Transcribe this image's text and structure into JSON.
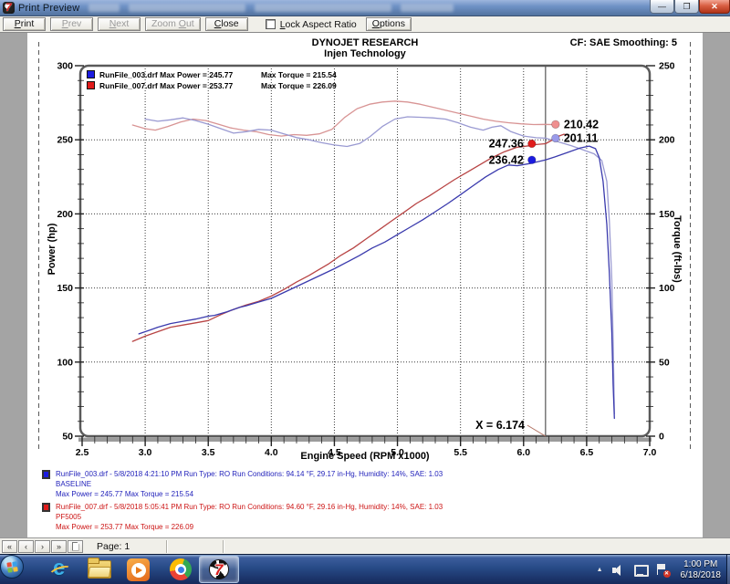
{
  "window": {
    "title": "Print Preview"
  },
  "toolbar": {
    "buttons": [
      {
        "label": "Print"
      },
      {
        "label": "Prev"
      },
      {
        "label": "Next"
      },
      {
        "label": "Zoom Out"
      },
      {
        "label": "Close"
      }
    ],
    "lock_label": "Lock Aspect Ratio",
    "lock_checked": false,
    "options_label": "Options"
  },
  "page": {
    "header": {
      "brand": "DYNOJET RESEARCH",
      "subtitle": "Injen Technology",
      "correction": "CF: SAE  Smoothing: 5"
    },
    "runs": [
      {
        "color": "#2323bb",
        "swatch": "#1b1be0",
        "info": "RunFile_003.drf - 5/8/2018 4:21:10 PM  Run Type: RO  Run Conditions: 94.14 °F, 29.17 in-Hg,  Humidity:  14%, SAE: 1.03",
        "name": "BASELINE",
        "stats": "Max Power = 245.77  Max Torque = 215.54"
      },
      {
        "color": "#cc1414",
        "swatch": "#e01b1b",
        "info": "RunFile_007.drf - 5/8/2018 5:05:41 PM  Run Type: RO  Run Conditions: 94.60 °F, 29.16 in-Hg,  Humidity:  14%, SAE: 1.03",
        "name": "PF5005",
        "stats": "Max Power = 253.77  Max Torque = 226.09"
      }
    ]
  },
  "chart_data": {
    "type": "line",
    "title": "DYNOJET RESEARCH - Injen Technology",
    "xlabel": "Engine Speed (RPM x1000)",
    "ylabel_left": "Power (hp)",
    "ylabel_right": "Torque (ft-lbs)",
    "xlim": [
      2.5,
      7.0
    ],
    "x_tick_step": 0.5,
    "x_minor_step": 0.1,
    "ylim_left": [
      50,
      300
    ],
    "ylim_right": [
      0,
      250
    ],
    "y_tick_step": 50,
    "y_minor_step": 10,
    "grid": "dotted",
    "legend": [
      {
        "file": "RunFile_003.drf",
        "power": "Max Power = 245.77",
        "torque": "Max Torque = 215.54",
        "color": "#1b1be0"
      },
      {
        "file": "RunFile_007.drf",
        "power": "Max Power = 253.77",
        "torque": "Max Torque = 226.09",
        "color": "#e01b1b"
      }
    ],
    "cursor": {
      "x": 6.174,
      "label": "X = 6.174"
    },
    "annotations": [
      {
        "label": "210.42",
        "value": 210.42,
        "axis": "right",
        "side": "after",
        "color": "#ef9090"
      },
      {
        "label": "201.11",
        "value": 201.11,
        "axis": "right",
        "side": "after",
        "color": "#9a9aea"
      },
      {
        "label": "247.36",
        "value": 247.36,
        "axis": "left",
        "side": "before",
        "color": "#e01b1b"
      },
      {
        "label": "236.42",
        "value": 236.42,
        "axis": "left",
        "side": "before",
        "color": "#1b1be0"
      }
    ],
    "series": [
      {
        "name": "RunFile_007 Torque",
        "axis": "right",
        "color": "#d89494",
        "points": [
          [
            2.9,
            210
          ],
          [
            3.0,
            207.5
          ],
          [
            3.08,
            206.5
          ],
          [
            3.18,
            209
          ],
          [
            3.28,
            212
          ],
          [
            3.38,
            214
          ],
          [
            3.48,
            213
          ],
          [
            3.58,
            210.5
          ],
          [
            3.68,
            208
          ],
          [
            3.78,
            206.5
          ],
          [
            3.88,
            205.5
          ],
          [
            3.98,
            203.5
          ],
          [
            4.08,
            202.5
          ],
          [
            4.18,
            203.5
          ],
          [
            4.28,
            203
          ],
          [
            4.38,
            204
          ],
          [
            4.48,
            207
          ],
          [
            4.58,
            215
          ],
          [
            4.68,
            221
          ],
          [
            4.78,
            224
          ],
          [
            4.88,
            225.5
          ],
          [
            4.98,
            226.09
          ],
          [
            5.08,
            225.5
          ],
          [
            5.18,
            224
          ],
          [
            5.28,
            222
          ],
          [
            5.38,
            220
          ],
          [
            5.48,
            218
          ],
          [
            5.58,
            216
          ],
          [
            5.68,
            214
          ],
          [
            5.78,
            212.5
          ],
          [
            5.88,
            211.5
          ],
          [
            5.98,
            210.8
          ],
          [
            6.08,
            210.3
          ],
          [
            6.174,
            210.42
          ],
          [
            6.25,
            210.2
          ]
        ]
      },
      {
        "name": "RunFile_003 Torque",
        "axis": "right",
        "color": "#9a9ad2",
        "points": [
          [
            3.0,
            214
          ],
          [
            3.1,
            212.5
          ],
          [
            3.2,
            213.5
          ],
          [
            3.3,
            214.8
          ],
          [
            3.4,
            213
          ],
          [
            3.5,
            210.5
          ],
          [
            3.6,
            207.5
          ],
          [
            3.7,
            204.5
          ],
          [
            3.8,
            205.5
          ],
          [
            3.9,
            207
          ],
          [
            4.0,
            206.5
          ],
          [
            4.1,
            204
          ],
          [
            4.2,
            201.5
          ],
          [
            4.3,
            200
          ],
          [
            4.4,
            198
          ],
          [
            4.5,
            196.5
          ],
          [
            4.6,
            195.5
          ],
          [
            4.7,
            197.5
          ],
          [
            4.78,
            202
          ],
          [
            4.88,
            209
          ],
          [
            4.98,
            214
          ],
          [
            5.08,
            215.54
          ],
          [
            5.18,
            215.2
          ],
          [
            5.28,
            214.8
          ],
          [
            5.38,
            214
          ],
          [
            5.48,
            211.5
          ],
          [
            5.58,
            208.5
          ],
          [
            5.68,
            206.5
          ],
          [
            5.75,
            208.5
          ],
          [
            5.82,
            209.5
          ],
          [
            5.9,
            205.5
          ],
          [
            6.0,
            202.5
          ],
          [
            6.1,
            201.4
          ],
          [
            6.174,
            201.11
          ],
          [
            6.28,
            198.5
          ],
          [
            6.38,
            196
          ],
          [
            6.48,
            193
          ],
          [
            6.56,
            190.5
          ],
          [
            6.62,
            186
          ],
          [
            6.66,
            172
          ],
          [
            6.68,
            145
          ],
          [
            6.7,
            105
          ],
          [
            6.71,
            65
          ],
          [
            6.72,
            15
          ]
        ]
      },
      {
        "name": "RunFile_007 Power",
        "axis": "left",
        "color": "#b84444",
        "points": [
          [
            2.9,
            114
          ],
          [
            3.0,
            117.5
          ],
          [
            3.1,
            120.5
          ],
          [
            3.2,
            123.5
          ],
          [
            3.3,
            125
          ],
          [
            3.4,
            126.5
          ],
          [
            3.5,
            128
          ],
          [
            3.6,
            132
          ],
          [
            3.7,
            135.5
          ],
          [
            3.8,
            138.5
          ],
          [
            3.9,
            141
          ],
          [
            4.0,
            144.5
          ],
          [
            4.1,
            149
          ],
          [
            4.2,
            154
          ],
          [
            4.3,
            158.5
          ],
          [
            4.35,
            161
          ],
          [
            4.45,
            166
          ],
          [
            4.55,
            172
          ],
          [
            4.65,
            177
          ],
          [
            4.75,
            183
          ],
          [
            4.85,
            189
          ],
          [
            4.95,
            195
          ],
          [
            5.05,
            201
          ],
          [
            5.15,
            207
          ],
          [
            5.25,
            212
          ],
          [
            5.35,
            217.5
          ],
          [
            5.45,
            223
          ],
          [
            5.55,
            228
          ],
          [
            5.65,
            233
          ],
          [
            5.75,
            238
          ],
          [
            5.85,
            242
          ],
          [
            5.95,
            245
          ],
          [
            6.05,
            246
          ],
          [
            6.1,
            246.8
          ],
          [
            6.174,
            247.36
          ],
          [
            6.22,
            249.5
          ],
          [
            6.28,
            252.5
          ],
          [
            6.32,
            253.77
          ],
          [
            6.35,
            253.2
          ]
        ]
      },
      {
        "name": "RunFile_003 Power",
        "axis": "left",
        "color": "#3a3aad",
        "points": [
          [
            2.95,
            119
          ],
          [
            3.05,
            122
          ],
          [
            3.1,
            123.5
          ],
          [
            3.2,
            126
          ],
          [
            3.3,
            127.5
          ],
          [
            3.4,
            129
          ],
          [
            3.5,
            131
          ],
          [
            3.55,
            131.5
          ],
          [
            3.65,
            134
          ],
          [
            3.75,
            137
          ],
          [
            3.8,
            138
          ],
          [
            3.9,
            140.5
          ],
          [
            4.0,
            143
          ],
          [
            4.1,
            147
          ],
          [
            4.2,
            151
          ],
          [
            4.3,
            155
          ],
          [
            4.4,
            159
          ],
          [
            4.5,
            163
          ],
          [
            4.6,
            167.5
          ],
          [
            4.7,
            172
          ],
          [
            4.8,
            177
          ],
          [
            4.9,
            181
          ],
          [
            5.0,
            186
          ],
          [
            5.1,
            191
          ],
          [
            5.2,
            196
          ],
          [
            5.3,
            201.5
          ],
          [
            5.4,
            207
          ],
          [
            5.5,
            213
          ],
          [
            5.6,
            219
          ],
          [
            5.7,
            225
          ],
          [
            5.8,
            230
          ],
          [
            5.88,
            233
          ],
          [
            5.95,
            232.5
          ],
          [
            6.05,
            234
          ],
          [
            6.1,
            235
          ],
          [
            6.174,
            236.42
          ],
          [
            6.25,
            238.5
          ],
          [
            6.35,
            241.5
          ],
          [
            6.45,
            244.5
          ],
          [
            6.52,
            245.77
          ],
          [
            6.57,
            244
          ],
          [
            6.6,
            238
          ],
          [
            6.63,
            222
          ],
          [
            6.66,
            193
          ],
          [
            6.68,
            160
          ],
          [
            6.7,
            120
          ],
          [
            6.71,
            85
          ],
          [
            6.72,
            62
          ]
        ]
      }
    ]
  },
  "status": {
    "nav": [
      "«",
      "‹",
      "›",
      "»"
    ],
    "page_label": "Page: 1"
  },
  "taskbar": {
    "time": "1:00 PM",
    "date": "6/18/2018"
  }
}
